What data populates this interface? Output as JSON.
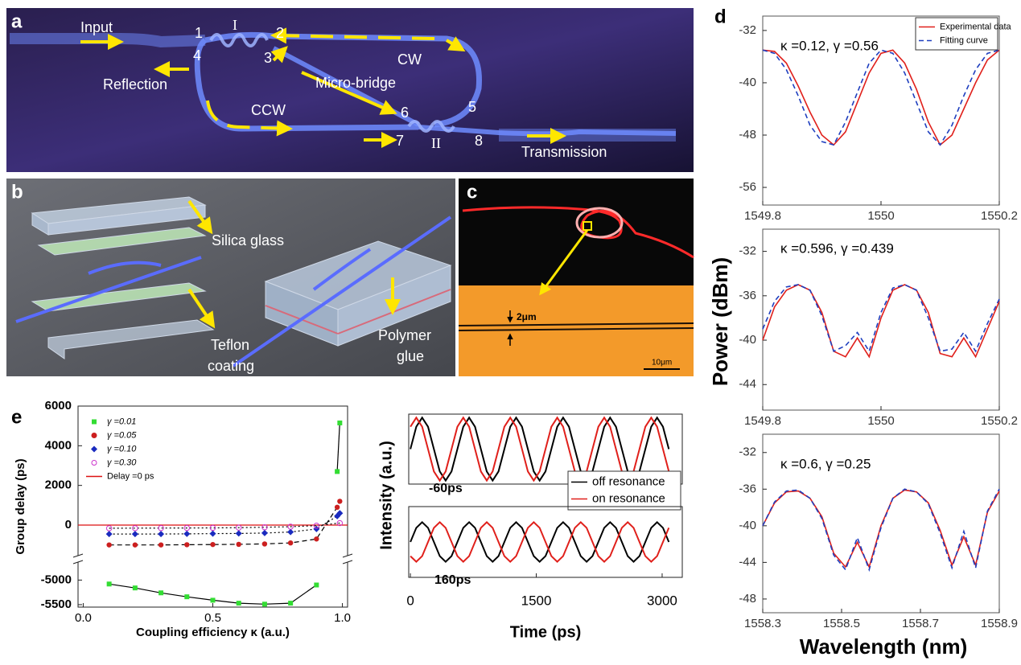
{
  "panel_a": {
    "letter": "a",
    "labels": [
      "Input",
      "1",
      "I",
      "2",
      "4",
      "3",
      "Reflection",
      "CW",
      "Micro-bridge",
      "6",
      "5",
      "CCW",
      "7",
      "II",
      "8",
      "Transmission"
    ]
  },
  "panel_b": {
    "letter": "b",
    "labels": [
      "Silica glass",
      "Teflon",
      "coating",
      "Polymer",
      "glue"
    ]
  },
  "panel_c": {
    "letter": "c",
    "labels": [
      "2μm",
      "10μm"
    ]
  },
  "panel_d": {
    "letter": "d",
    "ylabel": "Power (dBm)",
    "xlabel": "Wavelength (nm)"
  },
  "panel_e": {
    "letter": "e",
    "ylabel": "Intensity (a.u.)"
  },
  "chart_data": [
    {
      "type": "line",
      "annotation": "κ =0.12,  γ =0.56",
      "legend": "upper right",
      "x": [
        1549.8,
        1549.82,
        1549.84,
        1549.86,
        1549.88,
        1549.9,
        1549.92,
        1549.94,
        1549.96,
        1549.98,
        1550,
        1550.02,
        1550.04,
        1550.06,
        1550.08,
        1550.1,
        1550.12,
        1550.14,
        1550.16,
        1550.18,
        1550.2
      ],
      "series": [
        {
          "name": "Experimental data",
          "color": "#e0201b",
          "values": [
            -35,
            -35.2,
            -37,
            -40.5,
            -44.5,
            -48,
            -49.5,
            -47.5,
            -43,
            -38.5,
            -35.5,
            -35,
            -37,
            -41,
            -46,
            -49.5,
            -48,
            -44,
            -40,
            -36.5,
            -35
          ]
        },
        {
          "name": "Fitting curve",
          "color": "#1f3fbf",
          "line_style": "dashed",
          "values": [
            -35,
            -35.5,
            -38,
            -42,
            -46.5,
            -49,
            -49.5,
            -46,
            -41.5,
            -37,
            -35,
            -35.5,
            -38.5,
            -43,
            -47.5,
            -49.5,
            -46.5,
            -42,
            -38,
            -35.5,
            -35
          ]
        }
      ],
      "xlim": [
        1549.8,
        1550.2
      ],
      "ylim": [
        -58.7,
        -29.8
      ],
      "xticks": [
        1549.8,
        1550,
        1550.2
      ],
      "yticks": [
        -32,
        -40,
        -48,
        -56
      ]
    },
    {
      "type": "line",
      "annotation": "κ =0.596,  γ =0.439",
      "x": [
        1549.8,
        1549.82,
        1549.84,
        1549.86,
        1549.88,
        1549.9,
        1549.92,
        1549.94,
        1549.96,
        1549.98,
        1550,
        1550.02,
        1550.04,
        1550.06,
        1550.08,
        1550.1,
        1550.12,
        1550.14,
        1550.16,
        1550.18,
        1550.2
      ],
      "series": [
        {
          "color": "#e0201b",
          "values": [
            -40,
            -37,
            -35.5,
            -35,
            -35.5,
            -37.5,
            -41,
            -41.5,
            -39.8,
            -41.5,
            -38,
            -35.5,
            -35,
            -35.5,
            -37.5,
            -41.2,
            -41.5,
            -39.8,
            -41.5,
            -39,
            -36.5
          ]
        },
        {
          "color": "#1f3fbf",
          "line_style": "dashed",
          "values": [
            -39,
            -36.5,
            -35.2,
            -35,
            -35.5,
            -37.8,
            -41,
            -40.5,
            -39.3,
            -41,
            -37.5,
            -35.3,
            -35,
            -35.5,
            -38,
            -41,
            -40.8,
            -39.3,
            -41,
            -38.5,
            -36.3
          ]
        }
      ],
      "xlim": [
        1549.8,
        1550.2
      ],
      "ylim": [
        -46.3,
        -30
      ],
      "xticks": [
        1549.8,
        1550,
        1550.2
      ],
      "yticks": [
        -32,
        -36,
        -40,
        -44
      ]
    },
    {
      "type": "line",
      "annotation": "κ =0.6,  γ =0.25",
      "x": [
        1558.3,
        1558.33,
        1558.36,
        1558.39,
        1558.42,
        1558.45,
        1558.48,
        1558.51,
        1558.54,
        1558.57,
        1558.6,
        1558.63,
        1558.66,
        1558.69,
        1558.72,
        1558.75,
        1558.78,
        1558.81,
        1558.84,
        1558.87,
        1558.9
      ],
      "series": [
        {
          "color": "#e0201b",
          "values": [
            -40,
            -37.5,
            -36.3,
            -36.2,
            -37,
            -39,
            -43,
            -44.5,
            -41.8,
            -44.5,
            -40,
            -37,
            -36.1,
            -36.3,
            -37.5,
            -40.5,
            -44.3,
            -41.2,
            -44.3,
            -38.5,
            -36.2
          ]
        },
        {
          "color": "#1f3fbf",
          "line_style": "dashed",
          "values": [
            -40,
            -37.4,
            -36.2,
            -36.1,
            -37,
            -39.2,
            -43.2,
            -44.8,
            -41.3,
            -44.8,
            -40.2,
            -37,
            -36,
            -36.3,
            -37.6,
            -40.8,
            -44.6,
            -40.6,
            -44.6,
            -38.4,
            -36
          ]
        }
      ],
      "xlim": [
        1558.3,
        1558.9
      ],
      "ylim": [
        -49.5,
        -30
      ],
      "xticks": [
        1558.3,
        1558.5,
        1558.7,
        1558.9
      ],
      "yticks": [
        -32,
        -36,
        -40,
        -44,
        -48
      ]
    },
    {
      "type": "scatter",
      "xlabel": "Coupling efficiency κ (a.u.)",
      "ylabel": "Group delay (ps)",
      "legend": "upper left",
      "series": [
        {
          "name": "γ =0.01",
          "color": "#33dd33",
          "marker": "square",
          "line_style": "solid",
          "x": [
            0.1,
            0.2,
            0.3,
            0.4,
            0.5,
            0.6,
            0.7,
            0.8,
            0.9,
            0.98,
            0.99
          ],
          "values": [
            -5080,
            -5160,
            -5260,
            -5340,
            -5410,
            -5470,
            -5490,
            -5470,
            -5100,
            2700,
            5150
          ]
        },
        {
          "name": "γ =0.05",
          "color": "#cc1f1f",
          "marker": "circle",
          "line_style": "dashed",
          "x": [
            0.1,
            0.2,
            0.3,
            0.4,
            0.5,
            0.6,
            0.7,
            0.8,
            0.9,
            0.98,
            0.99
          ],
          "values": [
            -1000,
            -1000,
            -1000,
            -990,
            -980,
            -970,
            -950,
            -900,
            -700,
            900,
            1200
          ]
        },
        {
          "name": "γ =0.10",
          "color": "#1a2bbf",
          "marker": "diamond",
          "line_style": "dotted",
          "x": [
            0.1,
            0.2,
            0.3,
            0.4,
            0.5,
            0.6,
            0.7,
            0.8,
            0.9,
            0.98,
            0.99
          ],
          "values": [
            -450,
            -450,
            -450,
            -440,
            -430,
            -420,
            -400,
            -350,
            -200,
            450,
            600
          ]
        },
        {
          "name": "γ =0.30",
          "color": "#cc33cc",
          "marker": "open-circle",
          "line_style": "dotted",
          "x": [
            0.1,
            0.2,
            0.3,
            0.4,
            0.5,
            0.6,
            0.7,
            0.8,
            0.9,
            0.99
          ],
          "values": [
            -160,
            -155,
            -150,
            -145,
            -140,
            -130,
            -110,
            -80,
            -30,
            100
          ]
        }
      ],
      "hlines": [
        {
          "name": "Delay =0 ps",
          "color": "#dd1111",
          "value": 0
        }
      ],
      "xlim": [
        -0.02,
        1.02
      ],
      "ylim": [
        -5550,
        6000
      ],
      "ybreak": [
        -4650,
        -1500
      ],
      "xticks": [
        {
          "value": 0,
          "label": "0.0"
        },
        0.5,
        {
          "value": 1,
          "label": "1.0"
        }
      ],
      "yticks": [
        6000,
        4000,
        2000,
        0,
        -5000,
        -5500
      ]
    },
    {
      "type": "line",
      "annotation": "-60ps",
      "legend": "lower right",
      "x": [
        0,
        70,
        140,
        210,
        280,
        350,
        420,
        490,
        560,
        630,
        700,
        770,
        840,
        910,
        980,
        1050,
        1120,
        1190,
        1260,
        1330,
        1400,
        1470,
        1540,
        1610,
        1680,
        1750,
        1820,
        1890,
        1960,
        2030,
        2100,
        2170,
        2240,
        2310,
        2380,
        2450,
        2520,
        2590,
        2660,
        2730,
        2800,
        2870,
        2940,
        3010,
        3080
      ],
      "series": [
        {
          "name": "off resonance",
          "color": "#000000",
          "values": [
            0.5,
            0.82,
            0.95,
            0.82,
            0.5,
            0.18,
            0.05,
            0.18,
            0.5,
            0.82,
            0.95,
            0.82,
            0.5,
            0.18,
            0.05,
            0.18,
            0.5,
            0.82,
            0.95,
            0.82,
            0.5,
            0.18,
            0.05,
            0.18,
            0.5,
            0.82,
            0.95,
            0.82,
            0.5,
            0.18,
            0.05,
            0.18,
            0.5,
            0.82,
            0.95,
            0.82,
            0.5,
            0.18,
            0.05,
            0.18,
            0.5,
            0.82,
            0.95,
            0.82,
            0.5
          ]
        },
        {
          "name": "on resonance",
          "color": "#e0201b",
          "values": [
            0.82,
            0.95,
            0.82,
            0.5,
            0.18,
            0.05,
            0.18,
            0.5,
            0.82,
            0.95,
            0.82,
            0.5,
            0.18,
            0.05,
            0.18,
            0.5,
            0.82,
            0.95,
            0.82,
            0.5,
            0.18,
            0.05,
            0.18,
            0.5,
            0.82,
            0.95,
            0.82,
            0.5,
            0.18,
            0.05,
            0.18,
            0.5,
            0.82,
            0.95,
            0.82,
            0.5,
            0.18,
            0.05,
            0.18,
            0.5,
            0.82,
            0.95,
            0.82,
            0.5,
            0.18
          ]
        }
      ],
      "xlim": [
        -20,
        3240
      ],
      "ylim": [
        0,
        1
      ]
    },
    {
      "type": "line",
      "annotation": "160ps",
      "xlabel": "Time (ps)",
      "x": [
        0,
        70,
        140,
        210,
        280,
        350,
        420,
        490,
        560,
        630,
        700,
        770,
        840,
        910,
        980,
        1050,
        1120,
        1190,
        1260,
        1330,
        1400,
        1470,
        1540,
        1610,
        1680,
        1750,
        1820,
        1890,
        1960,
        2030,
        2100,
        2170,
        2240,
        2310,
        2380,
        2450,
        2520,
        2590,
        2660,
        2730,
        2800,
        2870,
        2940,
        3010,
        3080
      ],
      "series": [
        {
          "color": "#000000",
          "values": [
            0.5,
            0.7,
            0.78,
            0.7,
            0.5,
            0.3,
            0.22,
            0.3,
            0.5,
            0.7,
            0.78,
            0.7,
            0.5,
            0.3,
            0.22,
            0.3,
            0.5,
            0.7,
            0.78,
            0.7,
            0.5,
            0.3,
            0.22,
            0.3,
            0.5,
            0.7,
            0.78,
            0.7,
            0.5,
            0.3,
            0.22,
            0.3,
            0.5,
            0.7,
            0.78,
            0.7,
            0.5,
            0.3,
            0.22,
            0.3,
            0.5,
            0.7,
            0.78,
            0.7,
            0.5
          ]
        },
        {
          "color": "#e0201b",
          "values": [
            0.3,
            0.22,
            0.3,
            0.5,
            0.7,
            0.78,
            0.7,
            0.5,
            0.3,
            0.22,
            0.3,
            0.5,
            0.7,
            0.78,
            0.7,
            0.5,
            0.3,
            0.22,
            0.3,
            0.5,
            0.7,
            0.78,
            0.7,
            0.5,
            0.3,
            0.22,
            0.3,
            0.5,
            0.7,
            0.78,
            0.7,
            0.5,
            0.3,
            0.22,
            0.3,
            0.5,
            0.7,
            0.78,
            0.7,
            0.5,
            0.3,
            0.22,
            0.3,
            0.5,
            0.7
          ]
        }
      ],
      "xlim": [
        -20,
        3240
      ],
      "ylim": [
        0,
        1
      ],
      "xticks": [
        0,
        1500,
        3000
      ]
    }
  ]
}
